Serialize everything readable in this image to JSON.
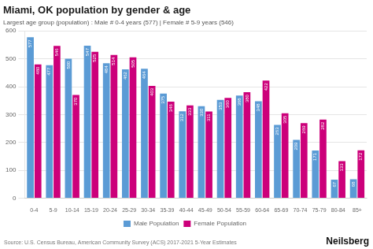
{
  "chart_data": {
    "type": "bar",
    "title": "Miami, OK population by gender & age",
    "subtitle": "Largest age group (population) : Male # 0-4 years (577) | Female # 5-9 years (546)",
    "categories": [
      "0-4",
      "5-9",
      "10-14",
      "15-19",
      "20-24",
      "25-29",
      "30-34",
      "35-39",
      "40-44",
      "45-49",
      "50-54",
      "55-59",
      "60-64",
      "65-69",
      "70-74",
      "75-79",
      "80-84",
      "85+"
    ],
    "series": [
      {
        "name": "Male Population",
        "color": "#5b9bd5",
        "values": [
          577,
          477,
          500,
          547,
          484,
          462,
          464,
          375,
          312,
          330,
          353,
          368,
          348,
          263,
          209,
          171,
          67,
          68
        ]
      },
      {
        "name": "Female Population",
        "color": "#cc007a",
        "values": [
          480,
          546,
          370,
          525,
          514,
          505,
          403,
          346,
          333,
          311,
          360,
          380,
          422,
          305,
          269,
          282,
          133,
          172
        ]
      }
    ],
    "ylim": [
      0,
      600
    ],
    "yticks": [
      0,
      100,
      200,
      300,
      400,
      500,
      600
    ],
    "grid": true,
    "legend": "bottom",
    "data_labels": true,
    "annotations": [
      "Source: U.S. Census Bureau, American Community Survey (ACS) 2017-2021 5-Year Estimates",
      "Neilsberg"
    ]
  }
}
